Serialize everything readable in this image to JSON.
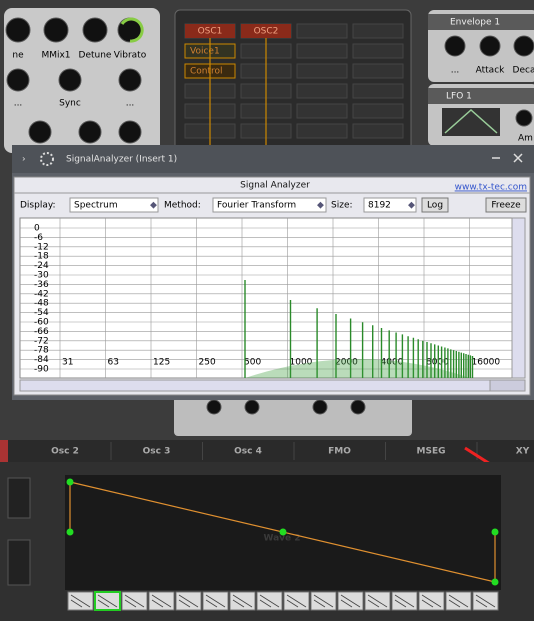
{
  "osc_panel": {
    "knob_labels": [
      "ne",
      "MMix1",
      "Detune",
      "Vibrato"
    ],
    "row2_labels": [
      "...",
      "Sync",
      "..."
    ]
  },
  "matrix": {
    "headers": [
      "OSC1",
      "OSC2"
    ],
    "rows": [
      "Voice1",
      "Control"
    ]
  },
  "envelope": {
    "title": "Envelope 1",
    "labels": [
      "...",
      "Attack",
      "Deca"
    ]
  },
  "lfo": {
    "title": "LFO 1",
    "label": "Am"
  },
  "analyzer": {
    "window_title": "SignalAnalyzer (Insert 1)",
    "title": "Signal Analyzer",
    "link": "www.tx-tec.com",
    "display_label": "Display:",
    "display": "Spectrum",
    "method_label": "Method:",
    "method": "Fourier Transform",
    "size_label": "Size:",
    "size": "8192",
    "log": "Log",
    "freeze": "Freeze",
    "y_labels": [
      "0",
      "-6",
      "-12",
      "-18",
      "-24",
      "-30",
      "-36",
      "-42",
      "-48",
      "-54",
      "-60",
      "-66",
      "-72",
      "-78",
      "-84",
      "-90"
    ],
    "x_labels": [
      "31",
      "63",
      "125",
      "250",
      "500",
      "1000",
      "2000",
      "4000",
      "8000",
      "16000"
    ]
  },
  "tabs": [
    "Osc 2",
    "Osc 3",
    "Osc 4",
    "FMO",
    "MSEG",
    "XY"
  ],
  "mseg": {
    "watermark": "Wave 2"
  }
}
